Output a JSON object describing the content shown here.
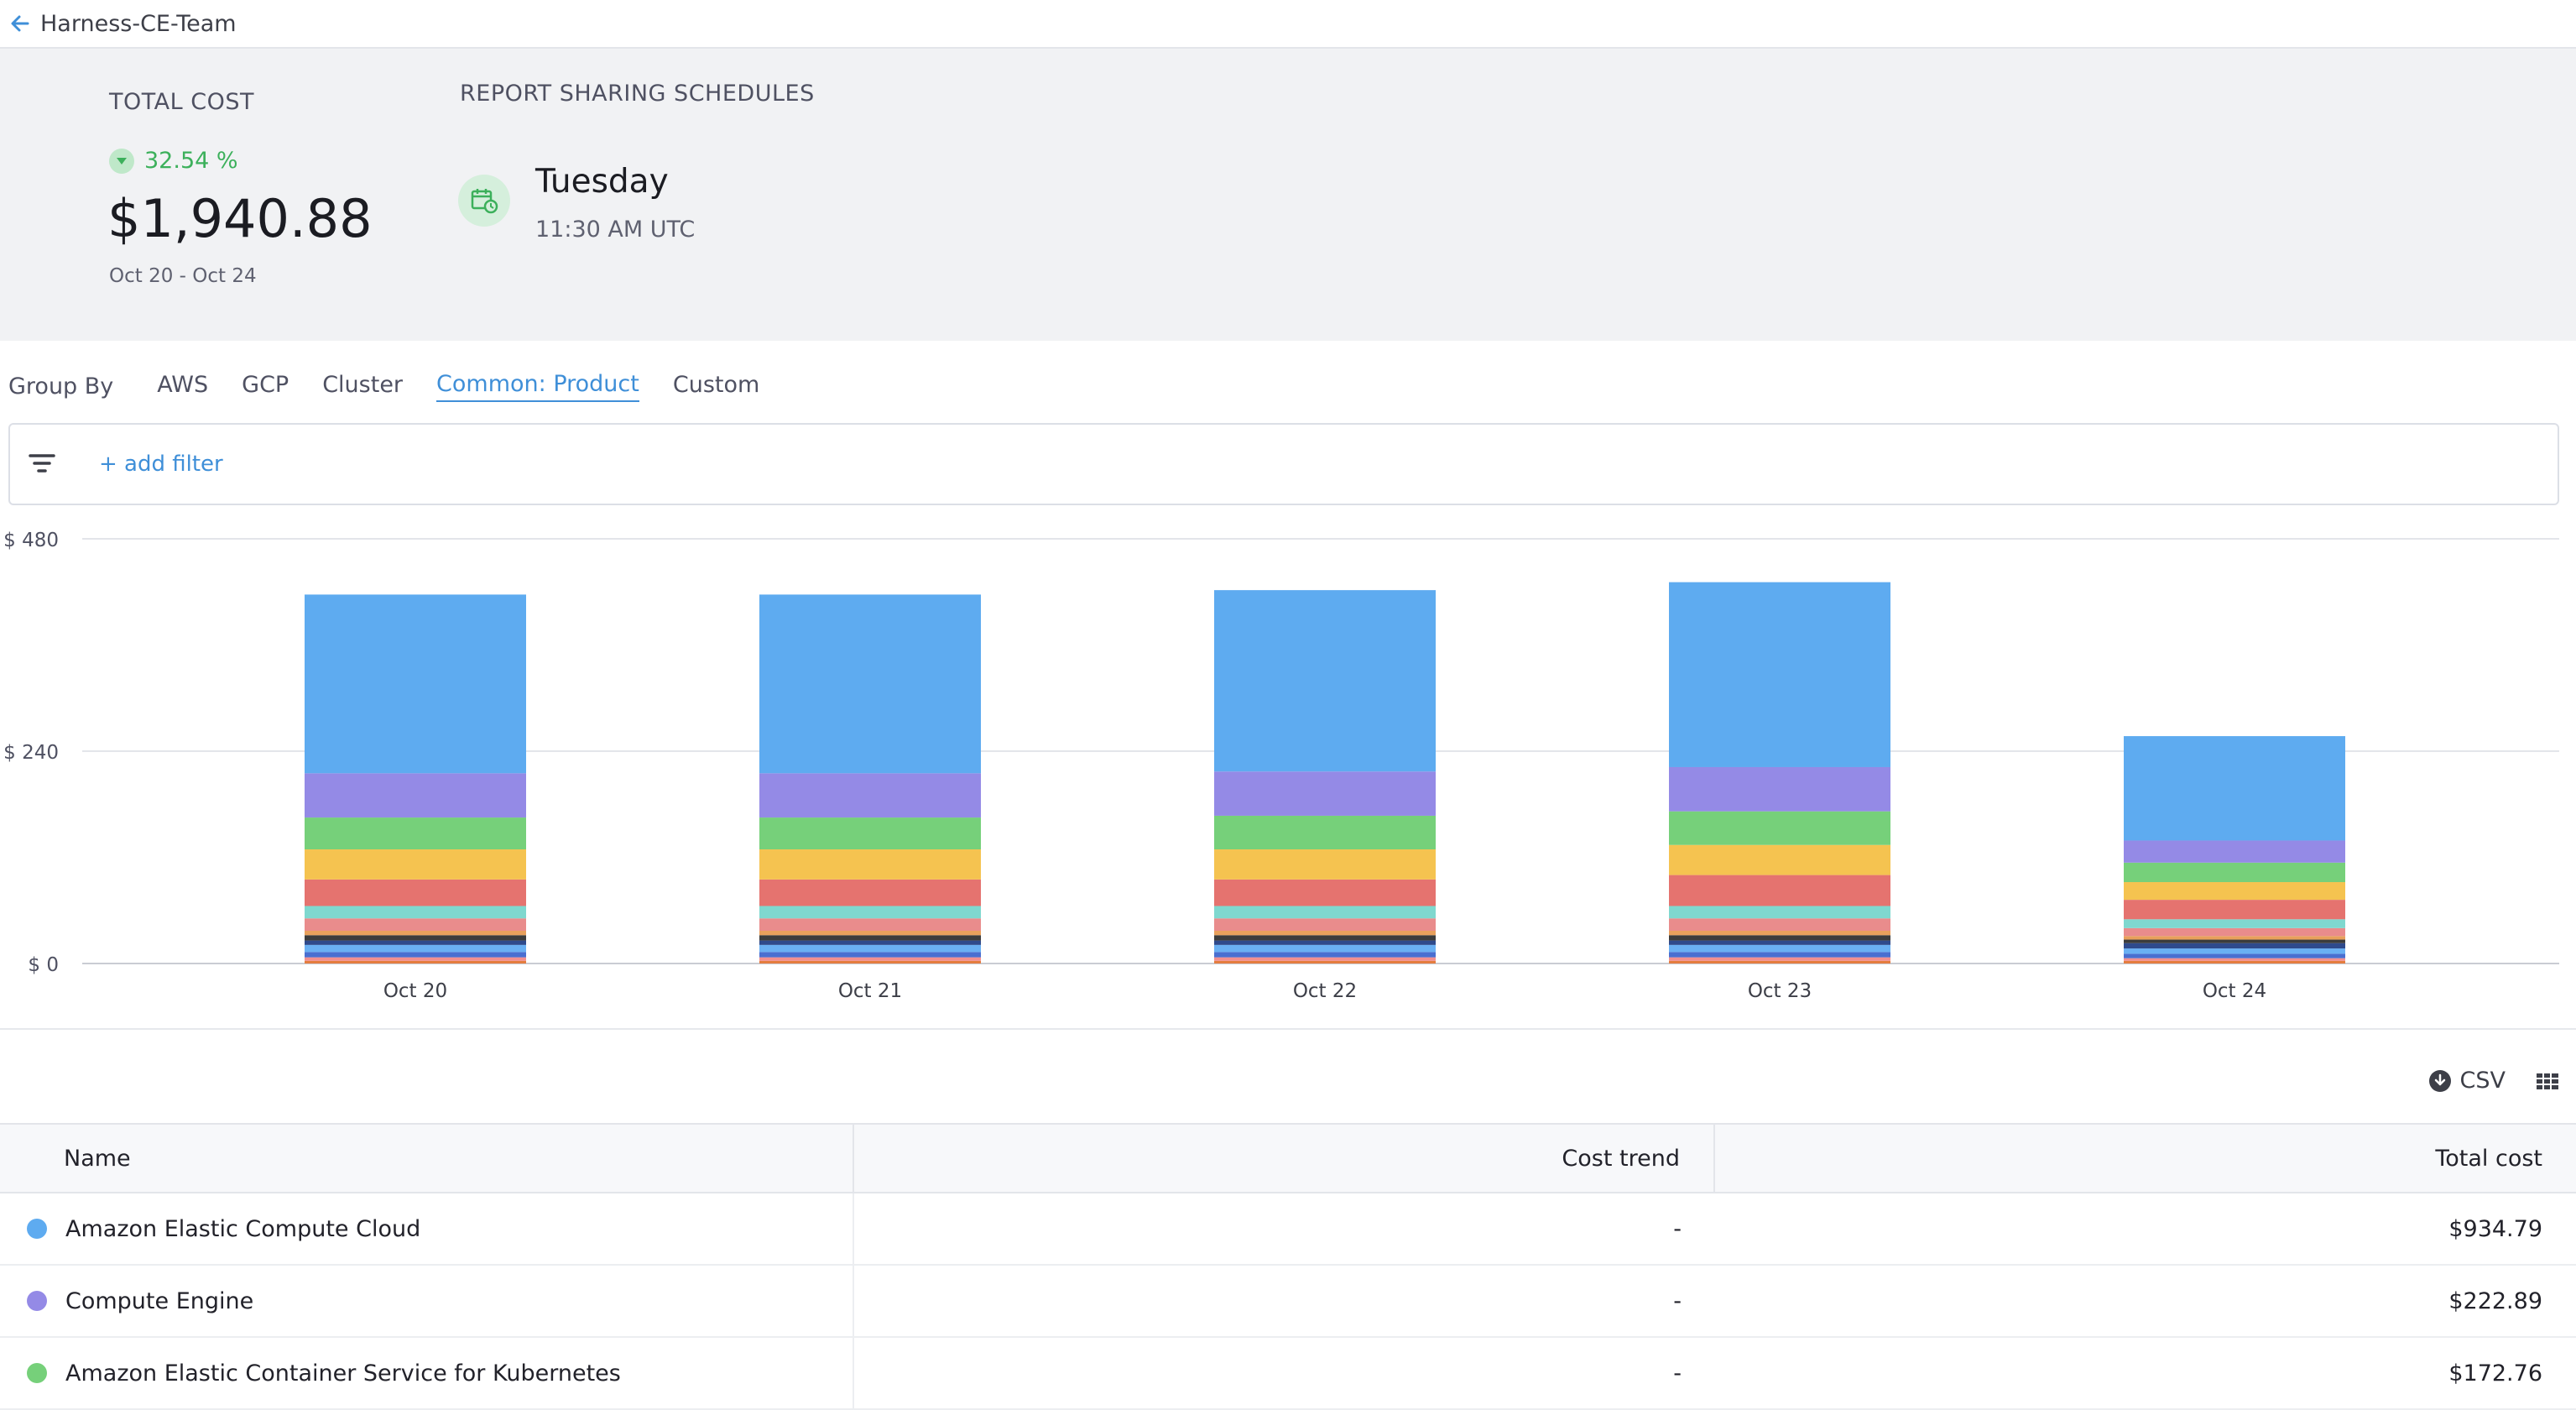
{
  "header": {
    "team": "Harness-CE-Team"
  },
  "summary": {
    "total_label": "TOTAL COST",
    "trend_value": "32.54 %",
    "total_value": "$1,940.88",
    "date_range": "Oct 20 - Oct 24",
    "schedule_label": "REPORT SHARING SCHEDULES",
    "schedule_day": "Tuesday",
    "schedule_time": "11:30 AM UTC"
  },
  "groupby": {
    "label": "Group By",
    "tabs": [
      "AWS",
      "GCP",
      "Cluster",
      "Common: Product",
      "Custom"
    ],
    "active": "Common: Product"
  },
  "filter": {
    "add_label": "+ add filter"
  },
  "tools": {
    "csv_label": "CSV"
  },
  "colors": {
    "accent": "#3f8fd8",
    "positive": "#3cb05b"
  },
  "chart_data": {
    "type": "bar",
    "stacked": true,
    "categories": [
      "Oct 20",
      "Oct 21",
      "Oct 22",
      "Oct 23",
      "Oct 24"
    ],
    "y_tick_labels": [
      "$ 0",
      "$ 240",
      "$ 480"
    ],
    "ylim": [
      0,
      480
    ],
    "grid": true,
    "series": [
      {
        "name": "",
        "color": "#e47d3f",
        "values": [
          3,
          3,
          3,
          3,
          3
        ]
      },
      {
        "name": "",
        "color": "#f28f8f",
        "values": [
          4,
          4,
          4,
          4,
          3
        ]
      },
      {
        "name": "",
        "color": "#4a6fd1",
        "values": [
          6,
          6,
          6,
          6,
          5
        ]
      },
      {
        "name": "",
        "color": "#6ab0f3",
        "values": [
          8,
          8,
          8,
          8,
          6
        ]
      },
      {
        "name": "",
        "color": "#2f4a8c",
        "values": [
          5,
          5,
          5,
          5,
          6
        ]
      },
      {
        "name": "",
        "color": "#3c3c3c",
        "values": [
          6,
          6,
          6,
          6,
          4
        ]
      },
      {
        "name": "",
        "color": "#e8a05c",
        "values": [
          5,
          5,
          5,
          5,
          4
        ]
      },
      {
        "name": "",
        "color": "#e98c8c",
        "values": [
          14,
          14,
          14,
          14,
          9
        ]
      },
      {
        "name": "",
        "color": "#7fd8cf",
        "values": [
          14,
          14,
          14,
          14,
          10
        ]
      },
      {
        "name": "",
        "color": "#e5736f",
        "values": [
          30,
          30,
          30,
          35,
          22
        ]
      },
      {
        "name": "",
        "color": "#f5c350",
        "values": [
          34,
          34,
          34,
          34,
          20
        ]
      },
      {
        "name": "Amazon Elastic Container Service for Kubernetes",
        "color": "#76d07a",
        "values": [
          36,
          36,
          38,
          38,
          22
        ]
      },
      {
        "name": "Compute Engine",
        "color": "#948ae6",
        "values": [
          50,
          50,
          50,
          50,
          25
        ]
      },
      {
        "name": "Amazon Elastic Compute Cloud",
        "color": "#5eabf0",
        "values": [
          202,
          202,
          205,
          209,
          118
        ]
      }
    ]
  },
  "table": {
    "headers": [
      "Name",
      "Cost trend",
      "Total cost"
    ],
    "rows": [
      {
        "name": "Amazon Elastic Compute Cloud",
        "color": "#5eabf0",
        "trend": "-",
        "cost": "$934.79"
      },
      {
        "name": "Compute Engine",
        "color": "#948ae6",
        "trend": "-",
        "cost": "$222.89"
      },
      {
        "name": "Amazon Elastic Container Service for Kubernetes",
        "color": "#76d07a",
        "trend": "-",
        "cost": "$172.76"
      }
    ]
  }
}
